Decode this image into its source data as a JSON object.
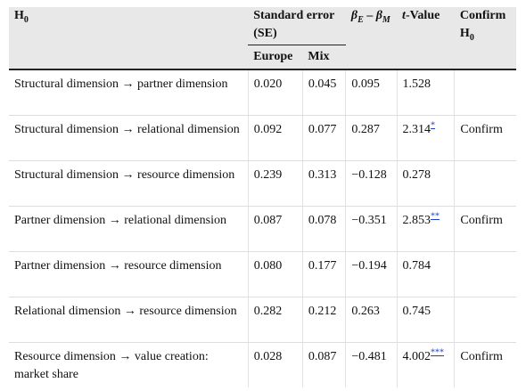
{
  "headers": {
    "h0_main": "H",
    "h0_sub": "0",
    "se": "Standard error (SE)",
    "beta_a": "β",
    "beta_a_sub": "E",
    "beta_minus": " – ",
    "beta_b": "β",
    "beta_b_sub": "M",
    "tval_italic": "t",
    "tval_rest": "-Value",
    "confirm_main": "Confirm H",
    "confirm_sub": "0",
    "europe": "Europe",
    "mix": "Mix"
  },
  "rows": [
    {
      "hyp": "Structural dimension → partner dimension",
      "europe": "0.020",
      "mix": "0.045",
      "diff": "0.095",
      "t": "1.528",
      "sig": "",
      "confirm": ""
    },
    {
      "hyp": "Structural dimension → relational dimension",
      "europe": "0.092",
      "mix": "0.077",
      "diff": "0.287",
      "t": "2.314",
      "sig": "*",
      "confirm": "Confirm"
    },
    {
      "hyp": "Structural dimension → resource dimension",
      "europe": "0.239",
      "mix": "0.313",
      "diff": "−0.128",
      "t": "0.278",
      "sig": "",
      "confirm": ""
    },
    {
      "hyp": "Partner dimension → relational dimension",
      "europe": "0.087",
      "mix": "0.078",
      "diff": "−0.351",
      "t": "2.853",
      "sig": "**",
      "confirm": "Confirm"
    },
    {
      "hyp": "Partner dimension → resource dimension",
      "europe": "0.080",
      "mix": "0.177",
      "diff": "−0.194",
      "t": "0.784",
      "sig": "",
      "confirm": ""
    },
    {
      "hyp": "Relational dimension → resource dimension",
      "europe": "0.282",
      "mix": "0.212",
      "diff": "0.263",
      "t": "0.745",
      "sig": "",
      "confirm": ""
    },
    {
      "hyp": "Resource dimension → value creation: market share",
      "europe": "0.028",
      "mix": "0.087",
      "diff": "−0.481",
      "t": "4.002",
      "sig": "***",
      "confirm": "Confirm"
    }
  ]
}
